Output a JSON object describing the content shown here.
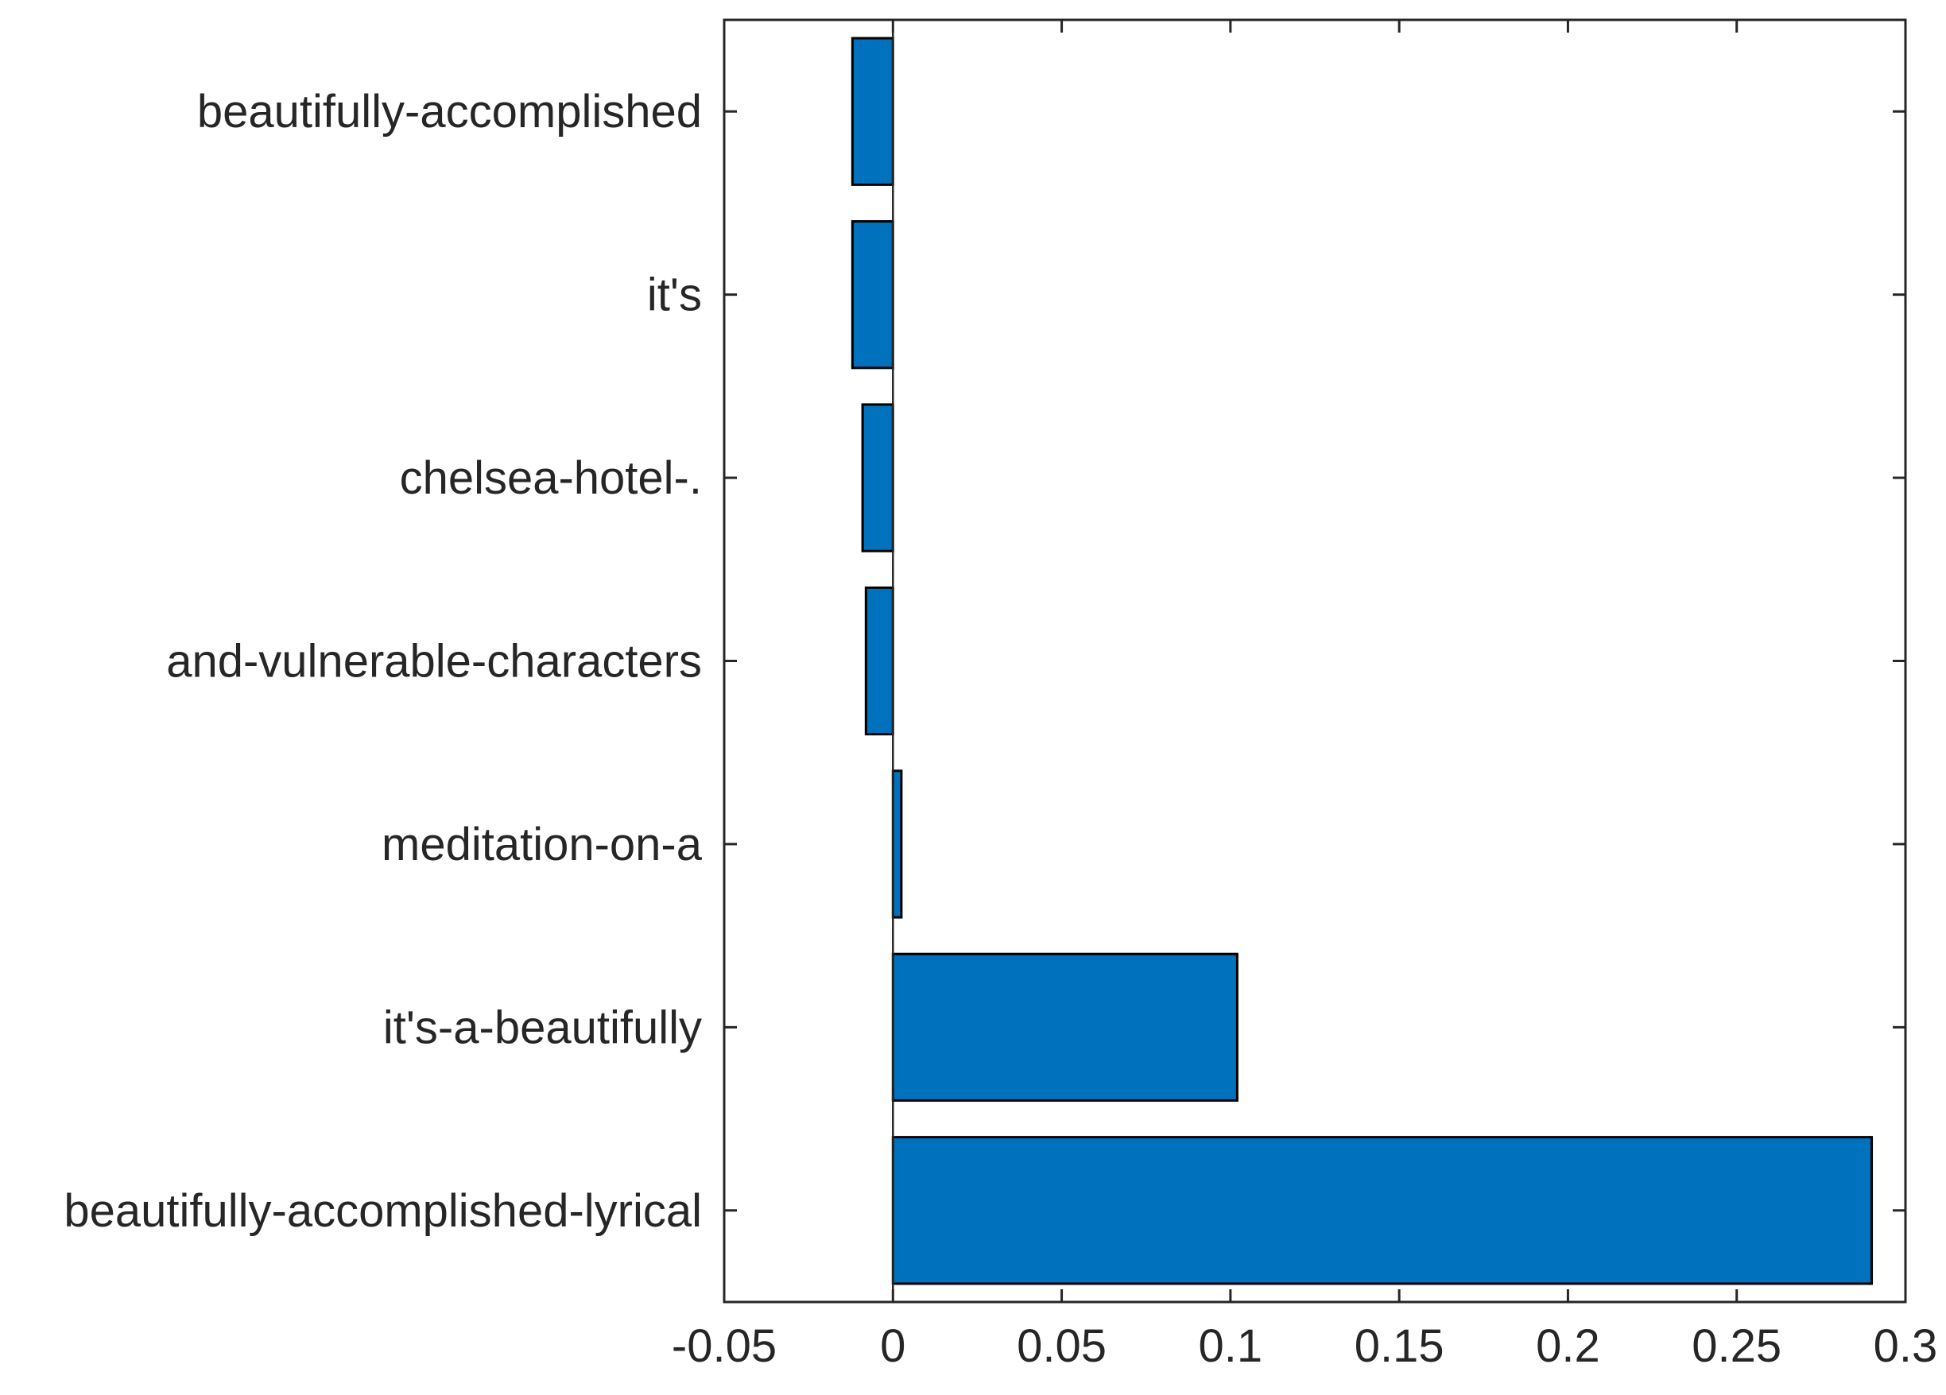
{
  "chart_data": {
    "type": "bar",
    "orientation": "horizontal",
    "categories": [
      "beautifully-accomplished",
      "it's",
      "chelsea-hotel-.",
      "and-vulnerable-characters",
      "meditation-on-a",
      "it's-a-beautifully",
      "beautifully-accomplished-lyrical"
    ],
    "values": [
      -0.012,
      -0.012,
      -0.009,
      -0.008,
      0.0025,
      0.102,
      0.29
    ],
    "xlim": [
      -0.05,
      0.3
    ],
    "xticks": [
      -0.05,
      0,
      0.05,
      0.1,
      0.15,
      0.2,
      0.25,
      0.3
    ],
    "xtick_labels": [
      "-0.05",
      "0",
      "0.05",
      "0.1",
      "0.15",
      "0.2",
      "0.25",
      "0.3"
    ],
    "title": "",
    "xlabel": "",
    "ylabel": "",
    "grid": false,
    "legend": "none",
    "bar_color": "#0072BD",
    "edge_color": "#000000"
  }
}
